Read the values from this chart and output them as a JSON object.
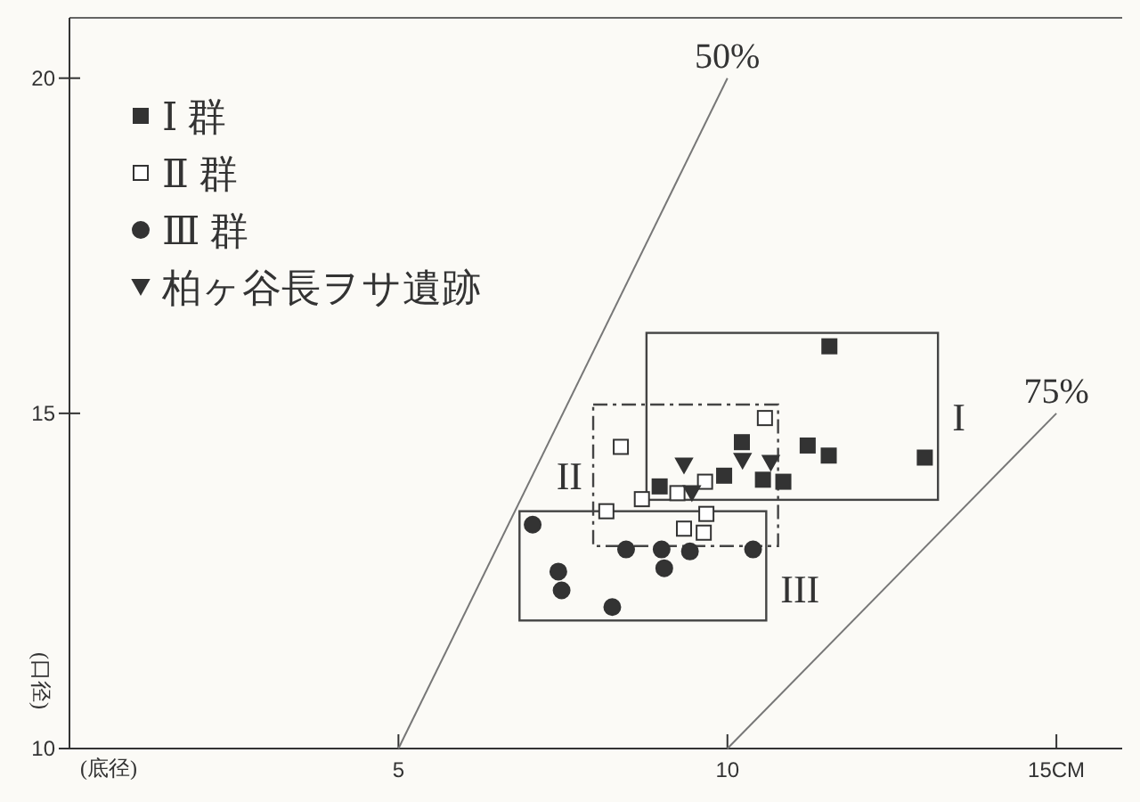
{
  "chart_data": {
    "type": "scatter",
    "xlabel": "(底径)",
    "ylabel": "(口径)",
    "xlim": [
      0,
      16
    ],
    "ylim": [
      10,
      20.9
    ],
    "xticks": [
      5,
      10,
      {
        "value": 15,
        "label": "15CM"
      }
    ],
    "yticks": [
      10,
      15,
      20
    ],
    "legend": "top left",
    "grid": false,
    "series": [
      {
        "name": "Ⅰ 群",
        "color": "#333333",
        "marker": "square",
        "x": [
          11.55,
          8.97,
          10.22,
          9.95,
          10.54,
          10.85,
          11.22,
          11.54,
          13.0
        ],
        "values": [
          16.0,
          13.91,
          14.57,
          14.07,
          14.01,
          13.98,
          14.52,
          14.37,
          14.34
        ]
      },
      {
        "name": "Ⅱ 群",
        "color": "#ffffff",
        "marker": "square",
        "x": [
          10.57,
          8.38,
          8.7,
          9.24,
          9.66,
          8.16,
          9.68,
          9.34,
          9.64
        ],
        "values": [
          14.93,
          14.5,
          13.72,
          13.81,
          13.98,
          13.54,
          13.5,
          13.28,
          13.22
        ]
      },
      {
        "name": "Ⅲ 群",
        "color": "#333333",
        "marker": "circle",
        "x": [
          7.04,
          7.43,
          7.48,
          8.25,
          8.46,
          9.0,
          9.04,
          9.43,
          10.39
        ],
        "values": [
          13.34,
          12.64,
          12.36,
          12.11,
          12.97,
          12.97,
          12.69,
          12.94,
          12.97
        ]
      },
      {
        "name": "柏ヶ谷長ヲサ遺跡",
        "color": "#333333",
        "marker": "triangle",
        "x": [
          9.34,
          9.46,
          10.23,
          10.66
        ],
        "values": [
          14.22,
          13.81,
          14.29,
          14.26
        ]
      },
      {
        "name": "50%",
        "type": "line",
        "color": "#777777",
        "line_style": "solid",
        "x": [
          5,
          10
        ],
        "values": [
          10,
          20
        ]
      },
      {
        "name": "75%",
        "type": "line",
        "color": "#777777",
        "line_style": "solid",
        "x": [
          10,
          15
        ],
        "values": [
          10,
          15
        ]
      }
    ],
    "annotations": [
      "I",
      "II",
      "III"
    ]
  }
}
